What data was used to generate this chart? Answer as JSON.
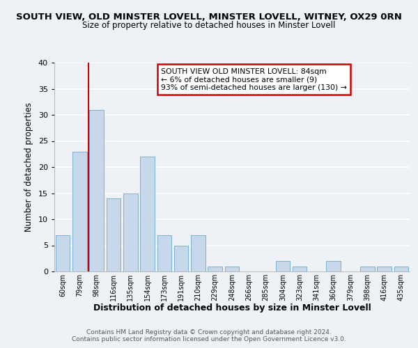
{
  "title": "SOUTH VIEW, OLD MINSTER LOVELL, MINSTER LOVELL, WITNEY, OX29 0RN",
  "subtitle": "Size of property relative to detached houses in Minster Lovell",
  "xlabel": "Distribution of detached houses by size in Minster Lovell",
  "ylabel": "Number of detached properties",
  "bar_color": "#c8d8eb",
  "bar_edge_color": "#7aafd4",
  "background_color": "#eef2f7",
  "categories": [
    "60sqm",
    "79sqm",
    "98sqm",
    "116sqm",
    "135sqm",
    "154sqm",
    "173sqm",
    "191sqm",
    "210sqm",
    "229sqm",
    "248sqm",
    "266sqm",
    "285sqm",
    "304sqm",
    "323sqm",
    "341sqm",
    "360sqm",
    "379sqm",
    "398sqm",
    "416sqm",
    "435sqm"
  ],
  "values": [
    7,
    23,
    31,
    14,
    15,
    22,
    7,
    5,
    7,
    1,
    1,
    0,
    0,
    2,
    1,
    0,
    2,
    0,
    1,
    1,
    1
  ],
  "ylim": [
    0,
    40
  ],
  "yticks": [
    0,
    5,
    10,
    15,
    20,
    25,
    30,
    35,
    40
  ],
  "vline_color": "#cc0000",
  "annotation_title": "SOUTH VIEW OLD MINSTER LOVELL: 84sqm",
  "annotation_line1": "← 6% of detached houses are smaller (9)",
  "annotation_line2": "93% of semi-detached houses are larger (130) →",
  "annotation_box_color": "#ffffff",
  "annotation_box_edge": "#cc0000",
  "footer_line1": "Contains HM Land Registry data © Crown copyright and database right 2024.",
  "footer_line2": "Contains public sector information licensed under the Open Government Licence v3.0."
}
